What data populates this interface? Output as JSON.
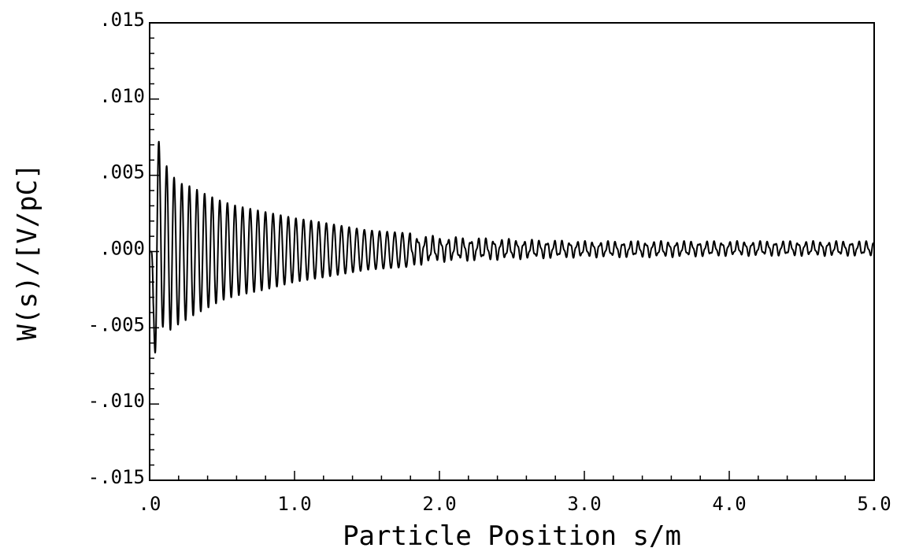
{
  "chart_data": {
    "type": "line",
    "title": "",
    "xlabel": "Particle Position s/m",
    "ylabel": "W(s)/[V/pC]",
    "xlim": [
      0,
      5.0
    ],
    "ylim": [
      -0.015,
      0.015
    ],
    "x_tick_labels": [
      ".0",
      "1.0",
      "2.0",
      "3.0",
      "4.0",
      "5.0"
    ],
    "x_tick_values": [
      0,
      1,
      2,
      3,
      4,
      5
    ],
    "y_tick_labels": [
      ".015",
      ".010",
      ".005",
      ".000",
      "-.005",
      "-.010",
      "-.015"
    ],
    "y_tick_values": [
      0.015,
      0.01,
      0.005,
      0.0,
      -0.005,
      -0.01,
      -0.015
    ],
    "grid": false,
    "legend": "none",
    "line_color": "#000000",
    "series": [
      {
        "x": [
          0.0,
          0.025,
          0.05,
          0.075,
          0.1,
          0.125,
          0.15,
          0.175,
          0.2,
          0.25,
          0.3,
          0.4,
          0.5,
          0.6,
          0.8,
          1.0,
          1.2,
          1.5,
          1.8,
          2.0,
          2.3,
          2.6,
          3.0,
          3.5,
          4.0,
          4.5,
          5.0
        ],
        "y_max": [
          0.0,
          0.0,
          0.0085,
          0.0062,
          0.0052,
          0.0058,
          0.006,
          0.0045,
          0.0045,
          0.0044,
          0.0042,
          0.0037,
          0.0033,
          0.003,
          0.0026,
          0.0022,
          0.0019,
          0.0014,
          0.0012,
          0.001,
          0.0009,
          0.0008,
          0.0007,
          0.0007,
          0.0007,
          0.0007,
          0.0007
        ],
        "y_min": [
          0.0,
          -0.0068,
          -0.0065,
          -0.0045,
          -0.0052,
          -0.005,
          -0.0052,
          -0.0048,
          -0.0048,
          -0.0045,
          -0.0042,
          -0.0037,
          -0.0032,
          -0.0029,
          -0.0025,
          -0.002,
          -0.0017,
          -0.0012,
          -0.001,
          -0.0007,
          -0.0006,
          -0.0005,
          -0.0004,
          -0.0004,
          -0.0003,
          -0.0003,
          -0.0003
        ]
      }
    ]
  }
}
